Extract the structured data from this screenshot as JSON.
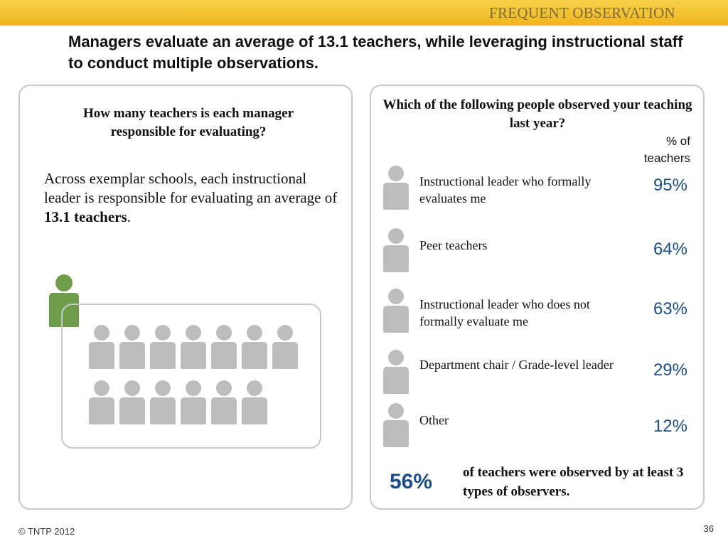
{
  "header": {
    "section_title": "FREQUENT OBSERVATION",
    "headline": "Managers evaluate an average of 13.1 teachers, while leveraging instructional staff to conduct multiple observations."
  },
  "left_panel": {
    "question": "How many teachers is each manager responsible for evaluating?",
    "body_prefix": "Across exemplar schools, each instructional leader is responsible for evaluating an average of ",
    "body_bold": "13.1 teachers",
    "body_suffix": ".",
    "graphic": {
      "manager_icon": "person-icon",
      "manager_color": "#6f9e4a",
      "teacher_icon": "person-icon",
      "teacher_color": "#bdbdbd",
      "teacher_rows": [
        7,
        6
      ]
    }
  },
  "right_panel": {
    "question": "Which of the following people observed your teaching last year?",
    "column_header": "% of teachers",
    "rows": [
      {
        "label": "Instructional leader who formally evaluates me",
        "value": "95%"
      },
      {
        "label": "Peer teachers",
        "value": "64%"
      },
      {
        "label": "Instructional leader who does not formally evaluate me",
        "value": "63%"
      },
      {
        "label": "Department chair / Grade-level leader",
        "value": "29%"
      },
      {
        "label": "Other",
        "value": "12%"
      }
    ],
    "summary_value": "56%",
    "summary_text": "of teachers were observed by at least 3 types of observers.",
    "accent_color": "#1a4f8a"
  },
  "footer": {
    "copyright": "© TNTP 2012",
    "page_number": "36"
  }
}
